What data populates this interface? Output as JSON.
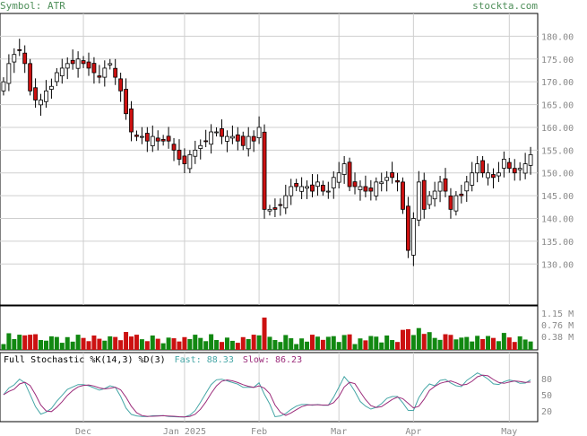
{
  "header": {
    "symbol": "Symbol: ATR",
    "site": "stockta.com"
  },
  "stochastic": {
    "title": "Full Stochastic %K(14,3) %D(3)",
    "fast": "Fast: 88.33",
    "slow": "Slow: 86.23"
  },
  "colors": {
    "up": "#ffffff",
    "down": "#cc1111",
    "vol_up": "#118811",
    "vol_down": "#cc1111",
    "grid": "#cfcfcf",
    "axis_text": "#8a8a8a",
    "k_line": "#45a6a6",
    "d_line": "#9b2b7a"
  },
  "chart_data": [
    {
      "type": "candlestick",
      "title": "",
      "y_ticks": [
        130,
        135,
        140,
        145,
        150,
        155,
        160,
        165,
        170,
        175,
        180
      ],
      "y_tick_labels": [
        "130.00",
        "135.00",
        "140.00",
        "145.00",
        "150.00",
        "155.00",
        "160.00",
        "165.00",
        "170.00",
        "175.00",
        "180.00"
      ],
      "ylim": [
        121,
        185
      ],
      "x_labels": [
        "Dec",
        "Jan 2025",
        "Feb",
        "Mar",
        "Apr",
        "May"
      ],
      "x_label_index": [
        15,
        34,
        48,
        63,
        77,
        95
      ],
      "n": 100,
      "close": [
        170,
        174,
        176,
        177,
        174,
        168,
        166,
        166,
        168,
        169,
        172,
        173,
        174,
        174,
        175,
        174,
        173,
        172,
        171,
        173,
        174,
        171,
        168,
        163,
        159,
        158,
        158,
        157,
        158,
        157,
        157,
        157,
        155,
        153,
        152,
        154,
        155,
        156,
        157,
        159,
        159,
        158,
        158,
        158,
        157,
        156,
        158,
        157,
        160,
        142,
        142,
        142,
        143,
        145,
        147,
        147,
        147,
        147,
        146,
        148,
        146,
        146,
        149,
        150,
        152,
        147,
        147,
        147,
        146,
        146,
        148,
        148,
        149,
        149,
        148,
        142,
        133,
        140,
        148,
        142,
        145,
        146,
        148,
        146,
        142,
        145,
        145,
        148,
        150,
        152,
        150,
        150,
        149,
        150,
        153,
        151,
        150,
        151,
        152,
        154
      ],
      "volume_max_m": 1.15,
      "volume_ticks": [
        "1.15 M",
        "0.76 M",
        "0.38 M"
      ],
      "stoch_ticks": [
        80,
        50,
        20
      ]
    }
  ]
}
